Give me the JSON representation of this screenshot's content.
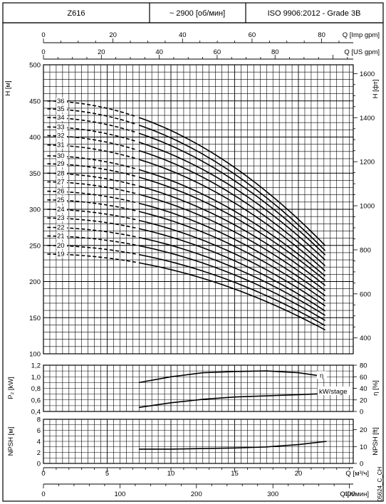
{
  "header": {
    "model": "Z616",
    "speed": "~ 2900 [об/мин]",
    "standard": "ISO 9906:2012 - Grade 3B"
  },
  "chart_data": {
    "type": "line",
    "x_unit_label": "Q [м³/ч]",
    "x_range": [
      0,
      24.3
    ],
    "x_ticks": [
      "0",
      "5",
      "10",
      "15",
      "20"
    ],
    "top_axes": [
      {
        "label": "Q [Imp gpm]",
        "range": [
          0,
          89.1
        ],
        "ticks": [
          "0",
          "20",
          "40",
          "60",
          "80"
        ]
      },
      {
        "label": "Q [US gpm]",
        "range": [
          0,
          107
        ],
        "ticks": [
          "0",
          "20",
          "40",
          "60",
          "80"
        ]
      }
    ],
    "bottom_axis2": {
      "label": "Q [л/мин]",
      "range": [
        0,
        405
      ],
      "ticks": [
        "0",
        "100",
        "200",
        "300",
        "400"
      ]
    },
    "head_panel": {
      "ylabel_left": "H [м]",
      "ylim": [
        100,
        500
      ],
      "yticks": [
        "100",
        "150",
        "200",
        "250",
        "300",
        "350",
        "400",
        "450",
        "500"
      ],
      "ylabel_right": "H [фт]",
      "right_range_ft": [
        328,
        1640
      ],
      "right_ticks": [
        "400",
        "600",
        "800",
        "1000",
        "1200",
        "1400",
        "1600"
      ],
      "grid": true,
      "dashed_below_q": 7.5,
      "curve_start_q": 0.3,
      "curve_end_q": 22.2,
      "stage_labels": [
        "36",
        "35",
        "34",
        "33",
        "32",
        "31",
        "30",
        "29",
        "28",
        "27",
        "26",
        "25",
        "24",
        "23",
        "22",
        "21",
        "20",
        "19"
      ],
      "series": [
        {
          "name": "36",
          "shutoff_head": 450,
          "end_head": 248
        },
        {
          "name": "35",
          "shutoff_head": 439,
          "end_head": 241
        },
        {
          "name": "34",
          "shutoff_head": 427,
          "end_head": 235
        },
        {
          "name": "33",
          "shutoff_head": 414,
          "end_head": 228
        },
        {
          "name": "32",
          "shutoff_head": 402,
          "end_head": 220
        },
        {
          "name": "31",
          "shutoff_head": 389,
          "end_head": 213
        },
        {
          "name": "30",
          "shutoff_head": 374,
          "end_head": 206
        },
        {
          "name": "29",
          "shutoff_head": 363,
          "end_head": 200
        },
        {
          "name": "28",
          "shutoff_head": 350,
          "end_head": 193
        },
        {
          "name": "27",
          "shutoff_head": 338,
          "end_head": 186
        },
        {
          "name": "26",
          "shutoff_head": 325,
          "end_head": 179
        },
        {
          "name": "25",
          "shutoff_head": 313,
          "end_head": 172
        },
        {
          "name": "24",
          "shutoff_head": 300,
          "end_head": 165
        },
        {
          "name": "23",
          "shutoff_head": 288,
          "end_head": 158
        },
        {
          "name": "22",
          "shutoff_head": 275,
          "end_head": 152
        },
        {
          "name": "21",
          "shutoff_head": 263,
          "end_head": 145
        },
        {
          "name": "20",
          "shutoff_head": 250,
          "end_head": 138
        },
        {
          "name": "19",
          "shutoff_head": 238,
          "end_head": 132
        }
      ]
    },
    "power_panel": {
      "ylabel_left": "P₂ [kW]",
      "ylim": [
        0.4,
        1.2
      ],
      "yticks": [
        "0,4",
        "0,6",
        "0,8",
        "1,0",
        "1,2"
      ],
      "ylabel_right": "η [%]",
      "right_range": [
        0,
        80
      ],
      "right_ticks": [
        "0",
        "20",
        "40",
        "60",
        "80"
      ],
      "efficiency": {
        "label": "η",
        "q": [
          7.5,
          10,
          12.5,
          15,
          17.5,
          20,
          22.2
        ],
        "eta_pct": [
          50,
          60,
          67,
          69,
          70,
          67,
          60
        ]
      },
      "power": {
        "label": "kW/stage",
        "q": [
          7.5,
          10,
          12.5,
          15,
          17.5,
          20,
          22.2
        ],
        "p2_kw": [
          0.47,
          0.55,
          0.61,
          0.65,
          0.67,
          0.69,
          0.71
        ]
      }
    },
    "npsh_panel": {
      "ylabel_left": "NPSH [м]",
      "ylim": [
        0,
        8
      ],
      "yticks": [
        "0",
        "2",
        "4",
        "6",
        "8"
      ],
      "ylabel_right": "NPSH [ft]",
      "right_range": [
        0,
        26.2
      ],
      "right_ticks": [
        "0",
        "10",
        "20"
      ],
      "npsh": {
        "q": [
          7.5,
          10,
          12.5,
          15,
          17.5,
          20,
          22.2
        ],
        "npsh_m": [
          2.6,
          2.6,
          2.7,
          2.8,
          3.0,
          3.4,
          4.0
        ]
      }
    },
    "drawing_id": "05624_C_CH"
  }
}
